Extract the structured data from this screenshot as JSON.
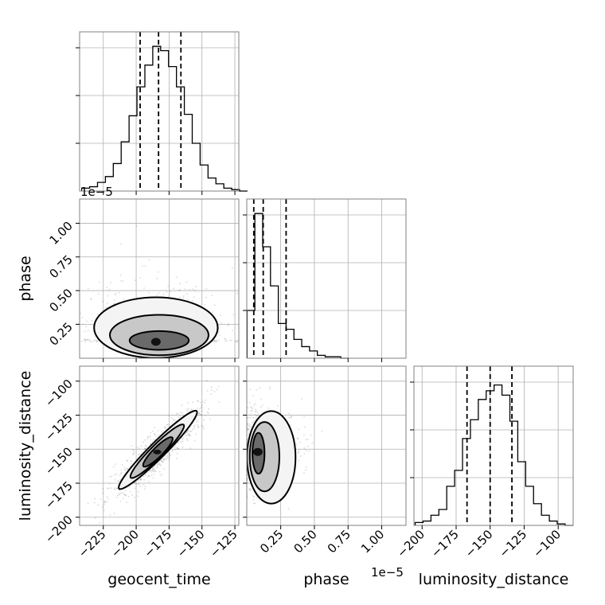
{
  "chart_data": {
    "type": "corner",
    "parameters": [
      "geocent_time",
      "phase",
      "luminosity_distance"
    ],
    "axes": {
      "geocent_time": {
        "label": "geocent_time",
        "range": [
          -243,
          -122
        ],
        "ticks": [
          -225,
          -200,
          -175,
          -150,
          -125
        ],
        "tick_labels": [
          "−225",
          "−200",
          "−175",
          "−150",
          "−125"
        ]
      },
      "phase": {
        "label": "phase",
        "offset_text": "1e−5",
        "range": [
          -0.002,
          1.18
        ],
        "ticks": [
          0.25,
          0.5,
          0.75,
          1.0
        ],
        "tick_labels": [
          "0.25",
          "0.50",
          "0.75",
          "1.00"
        ]
      },
      "luminosity_distance": {
        "label": "luminosity_distance",
        "range": [
          -206,
          -89
        ],
        "ticks": [
          -200,
          -175,
          -150,
          -125,
          -100
        ],
        "tick_labels": [
          "−200",
          "−175",
          "−150",
          "−125",
          "−100"
        ]
      }
    },
    "grid": true,
    "histograms": [
      {
        "parameter": "geocent_time",
        "quantiles": [
          -197,
          -183,
          -166
        ],
        "bins": [
          {
            "x": -241.4,
            "y": 0.02
          },
          {
            "x": -235.4,
            "y": 0.03
          },
          {
            "x": -229.4,
            "y": 0.06
          },
          {
            "x": -223.4,
            "y": 0.1
          },
          {
            "x": -217.4,
            "y": 0.19
          },
          {
            "x": -211.4,
            "y": 0.34
          },
          {
            "x": -205.4,
            "y": 0.52
          },
          {
            "x": -199.4,
            "y": 0.72
          },
          {
            "x": -193.4,
            "y": 0.87
          },
          {
            "x": -187.4,
            "y": 1.0
          },
          {
            "x": -181.4,
            "y": 0.97
          },
          {
            "x": -175.4,
            "y": 0.86
          },
          {
            "x": -169.4,
            "y": 0.72
          },
          {
            "x": -163.4,
            "y": 0.53
          },
          {
            "x": -157.4,
            "y": 0.33
          },
          {
            "x": -151.4,
            "y": 0.18
          },
          {
            "x": -145.4,
            "y": 0.09
          },
          {
            "x": -139.4,
            "y": 0.05
          },
          {
            "x": -133.4,
            "y": 0.02
          },
          {
            "x": -127.4,
            "y": 0.01
          },
          {
            "x": -121.4,
            "y": 0.0
          }
        ]
      },
      {
        "parameter": "phase",
        "quantiles": [
          0.05,
          0.12,
          0.29
        ],
        "bins": [
          {
            "x": 0.0,
            "y": 0.33
          },
          {
            "x": 0.058,
            "y": 1.0
          },
          {
            "x": 0.116,
            "y": 0.77
          },
          {
            "x": 0.174,
            "y": 0.5
          },
          {
            "x": 0.232,
            "y": 0.24
          },
          {
            "x": 0.29,
            "y": 0.2
          },
          {
            "x": 0.348,
            "y": 0.13
          },
          {
            "x": 0.406,
            "y": 0.08
          },
          {
            "x": 0.464,
            "y": 0.05
          },
          {
            "x": 0.522,
            "y": 0.02
          },
          {
            "x": 0.58,
            "y": 0.01
          },
          {
            "x": 0.638,
            "y": 0.01
          },
          {
            "x": 0.696,
            "y": 0.0
          }
        ]
      },
      {
        "parameter": "luminosity_distance",
        "quantiles": [
          -167,
          -150,
          -134
        ],
        "bins": [
          {
            "x": -205.1,
            "y": 0.02
          },
          {
            "x": -199.3,
            "y": 0.03
          },
          {
            "x": -193.5,
            "y": 0.07
          },
          {
            "x": -187.7,
            "y": 0.11
          },
          {
            "x": -181.9,
            "y": 0.27
          },
          {
            "x": -176.1,
            "y": 0.38
          },
          {
            "x": -170.3,
            "y": 0.6
          },
          {
            "x": -164.5,
            "y": 0.73
          },
          {
            "x": -158.7,
            "y": 0.87
          },
          {
            "x": -152.9,
            "y": 0.93
          },
          {
            "x": -147.1,
            "y": 0.97
          },
          {
            "x": -141.3,
            "y": 0.9
          },
          {
            "x": -135.5,
            "y": 0.72
          },
          {
            "x": -129.7,
            "y": 0.44
          },
          {
            "x": -123.9,
            "y": 0.27
          },
          {
            "x": -118.1,
            "y": 0.15
          },
          {
            "x": -112.3,
            "y": 0.07
          },
          {
            "x": -106.5,
            "y": 0.03
          },
          {
            "x": -100.7,
            "y": 0.01
          },
          {
            "x": -94.9,
            "y": 0.0
          }
        ]
      }
    ],
    "joint_plots": [
      {
        "x": "geocent_time",
        "y": "phase",
        "center": [
          -185,
          0.12
        ],
        "contours": [
          {
            "x_extent": [
              -205,
              -160
            ],
            "y_extent": [
              0.06,
              0.2
            ]
          },
          {
            "x_extent": [
              -220,
              -145
            ],
            "y_extent": [
              0.02,
              0.32
            ]
          },
          {
            "x_extent": [
              -232,
              -138
            ],
            "y_extent": [
              0.0,
              0.45
            ]
          }
        ]
      },
      {
        "x": "geocent_time",
        "y": "luminosity_distance",
        "center": [
          -184,
          -152
        ],
        "contours": [
          {
            "x_extent": [
              -195,
              -172
            ],
            "y_extent": [
              -162,
              -142
            ]
          },
          {
            "x_extent": [
              -205,
              -163
            ],
            "y_extent": [
              -170,
              -133
            ]
          },
          {
            "x_extent": [
              -214,
              -153
            ],
            "y_extent": [
              -178,
              -123
            ]
          }
        ]
      },
      {
        "x": "phase",
        "y": "luminosity_distance",
        "center": [
          0.08,
          -152
        ],
        "contours": [
          {
            "x_extent": [
              0.04,
              0.13
            ],
            "y_extent": [
              -168,
              -138
            ]
          },
          {
            "x_extent": [
              0.02,
              0.24
            ],
            "y_extent": [
              -181,
              -130
            ]
          },
          {
            "x_extent": [
              0.0,
              0.36
            ],
            "y_extent": [
              -190,
              -122
            ]
          }
        ]
      }
    ]
  }
}
